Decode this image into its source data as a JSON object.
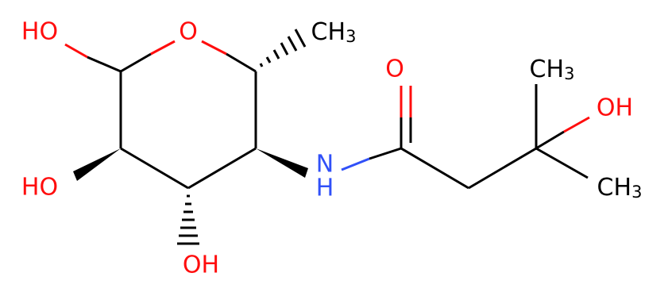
{
  "atoms": [
    {
      "label": "HO"
    },
    {
      "label": "O"
    },
    {
      "main": "CH",
      "sub": "3"
    },
    {
      "label": "O"
    },
    {
      "main": "CH",
      "sub": "3"
    },
    {
      "label": "OH"
    },
    {
      "main": "CH",
      "sub": "3"
    },
    {
      "label": "HO"
    },
    {
      "label": "N"
    },
    {
      "label": "H"
    },
    {
      "label": "OH"
    }
  ]
}
